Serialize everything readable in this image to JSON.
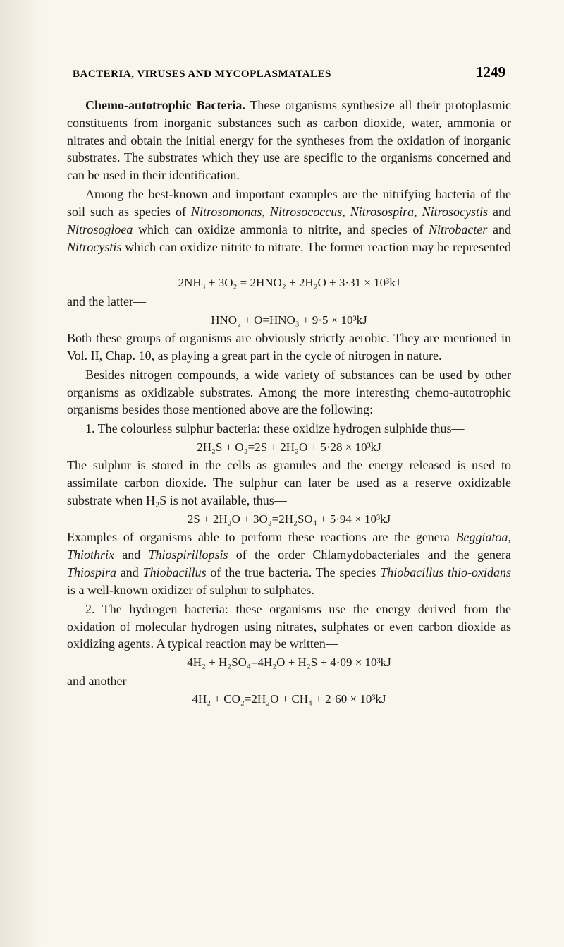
{
  "header": {
    "running_head": "BACTERIA, VIRUSES AND MYCOPLASMATALES",
    "page_number": "1249"
  },
  "content": {
    "p1_lead": "Chemo-autotrophic Bacteria.",
    "p1_rest": " These organisms synthesize all their protoplasmic constituents from inorganic substances such as carbon dioxide, water, ammonia or nitrates and obtain the initial energy for the syntheses from the oxidation of inorganic substrates. The substrates which they use are specific to the organisms concerned and can be used in their identification.",
    "p2a": "Among the best-known and important examples are the nitrifying bacteria of the soil such as species of ",
    "p2_it1": "Nitrosomonas",
    "p2b": ", ",
    "p2_it2": "Nitrosococcus",
    "p2c": ", ",
    "p2_it3": "Nitrosospira",
    "p2d": ", ",
    "p2_it4": "Nitrosocystis",
    "p2e": " and ",
    "p2_it5": "Nitrosogloea",
    "p2f": " which can oxidize ammonia to nitrite, and species of ",
    "p2_it6": "Nitrobacter",
    "p2g": " and ",
    "p2_it7": "Nitrocystis",
    "p2h": " which can oxidize nitrite to nitrate. The former reaction may be represented—",
    "eq1": "2NH₃ + 3O₂ = 2HNO₂ + 2H₂O + 3·31 × 10³kJ",
    "p3": "and the latter—",
    "eq2": "HNO₂ + O=HNO₃ + 9·5 × 10³kJ",
    "p4": "Both these groups of organisms are obviously strictly aerobic. They are mentioned in Vol. II, Chap. 10, as playing a great part in the cycle of nitrogen in nature.",
    "p5": "Besides nitrogen compounds, a wide variety of substances can be used by other organisms as oxidizable substrates. Among the more interesting chemo-autotrophic organisms besides those mentioned above are the following:",
    "p6": "1. The colourless sulphur bacteria: these oxidize hydrogen sulphide thus—",
    "eq3": "2H₂S + O₂=2S + 2H₂O + 5·28 × 10³kJ",
    "p7": "The sulphur is stored in the cells as granules and the energy released is used to assimilate carbon dioxide. The sulphur can later be used as a reserve oxidizable substrate when H₂S is not available, thus—",
    "eq4": "2S + 2H₂O + 3O₂=2H₂SO₄ + 5·94 × 10³kJ",
    "p8a": "Examples of organisms able to perform these reactions are the genera ",
    "p8_it1": "Beggiatoa",
    "p8b": ", ",
    "p8_it2": "Thiothrix",
    "p8c": " and ",
    "p8_it3": "Thiospirillopsis",
    "p8d": " of the order Chlamydobacteriales and the genera ",
    "p8_it4": "Thiospira",
    "p8e": " and ",
    "p8_it5": "Thiobacillus",
    "p8f": " of the true bacteria. The species ",
    "p8_it6": "Thiobacillus thio-oxidans",
    "p8g": " is a well-known oxidizer of sulphur to sulphates.",
    "p9": "2. The hydrogen bacteria: these organisms use the energy derived from the oxidation of molecular hydrogen using nitrates, sulphates or even carbon dioxide as oxidizing agents. A typical reaction may be written—",
    "eq5": "4H₂ + H₂SO₄=4H₂O + H₂S + 4·09 × 10³kJ",
    "p10": "and another—",
    "eq6": "4H₂ + CO₂=2H₂O + CH₄ + 2·60 × 10³kJ"
  }
}
